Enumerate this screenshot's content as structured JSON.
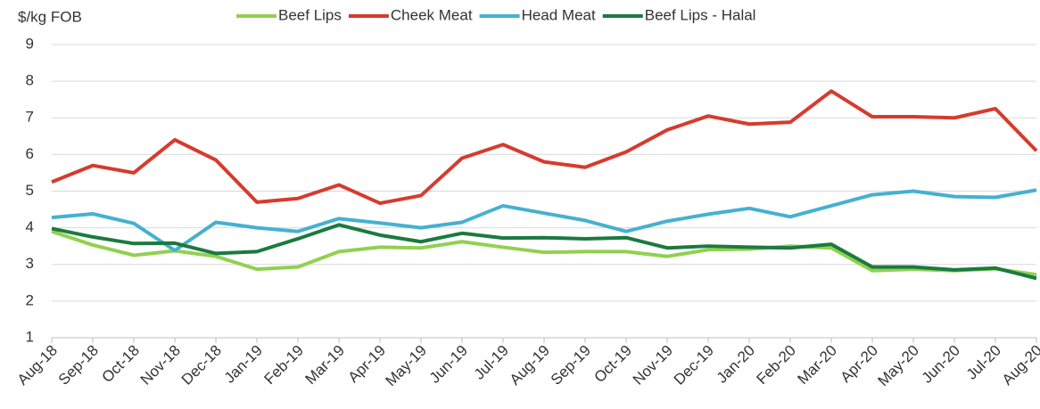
{
  "chart_data": {
    "type": "line",
    "y_label": "$/kg FOB",
    "categories": [
      "Aug-18",
      "Sep-18",
      "Oct-18",
      "Nov-18",
      "Dec-18",
      "Jan-19",
      "Feb-19",
      "Mar-19",
      "Apr-19",
      "May-19",
      "Jun-19",
      "Jul-19",
      "Aug-19",
      "Sep-19",
      "Oct-19",
      "Nov-19",
      "Dec-19",
      "Jan-20",
      "Feb-20",
      "Mar-20",
      "Apr-20",
      "May-20",
      "Jun-20",
      "Jul-20",
      "Aug-20"
    ],
    "series": [
      {
        "name": "Beef Lips",
        "color": "#92d050",
        "values": [
          3.9,
          3.53,
          3.25,
          3.37,
          3.22,
          2.87,
          2.93,
          3.35,
          3.47,
          3.45,
          3.62,
          3.47,
          3.33,
          3.35,
          3.35,
          3.22,
          3.4,
          3.42,
          3.5,
          3.45,
          2.83,
          2.87,
          2.83,
          2.88,
          2.72
        ]
      },
      {
        "name": "Cheek Meat",
        "color": "#d63b2f",
        "values": [
          5.25,
          5.7,
          5.5,
          6.4,
          5.85,
          4.7,
          4.8,
          5.17,
          4.67,
          4.88,
          5.9,
          6.27,
          5.8,
          5.65,
          6.07,
          6.67,
          7.05,
          6.83,
          6.88,
          7.73,
          7.03,
          7.03,
          7.0,
          7.25,
          6.1
        ]
      },
      {
        "name": "Head Meat",
        "color": "#45b1cf",
        "values": [
          4.28,
          4.38,
          4.12,
          3.38,
          4.15,
          4.0,
          3.9,
          4.25,
          4.13,
          4.0,
          4.15,
          4.6,
          4.4,
          4.2,
          3.9,
          4.18,
          4.37,
          4.53,
          4.3,
          4.6,
          4.9,
          5.0,
          4.85,
          4.83,
          5.03
        ]
      },
      {
        "name": "Beef Lips - Halal",
        "color": "#1b7a3f",
        "values": [
          3.98,
          3.75,
          3.57,
          3.58,
          3.3,
          3.35,
          3.7,
          4.08,
          3.8,
          3.62,
          3.85,
          3.72,
          3.73,
          3.7,
          3.73,
          3.45,
          3.5,
          3.47,
          3.45,
          3.55,
          2.93,
          2.93,
          2.85,
          2.9,
          2.62
        ]
      }
    ],
    "ylim": [
      1,
      9
    ],
    "yticks": [
      1,
      2,
      3,
      4,
      5,
      6,
      7,
      8,
      9
    ],
    "grid": true,
    "legend": "top"
  }
}
